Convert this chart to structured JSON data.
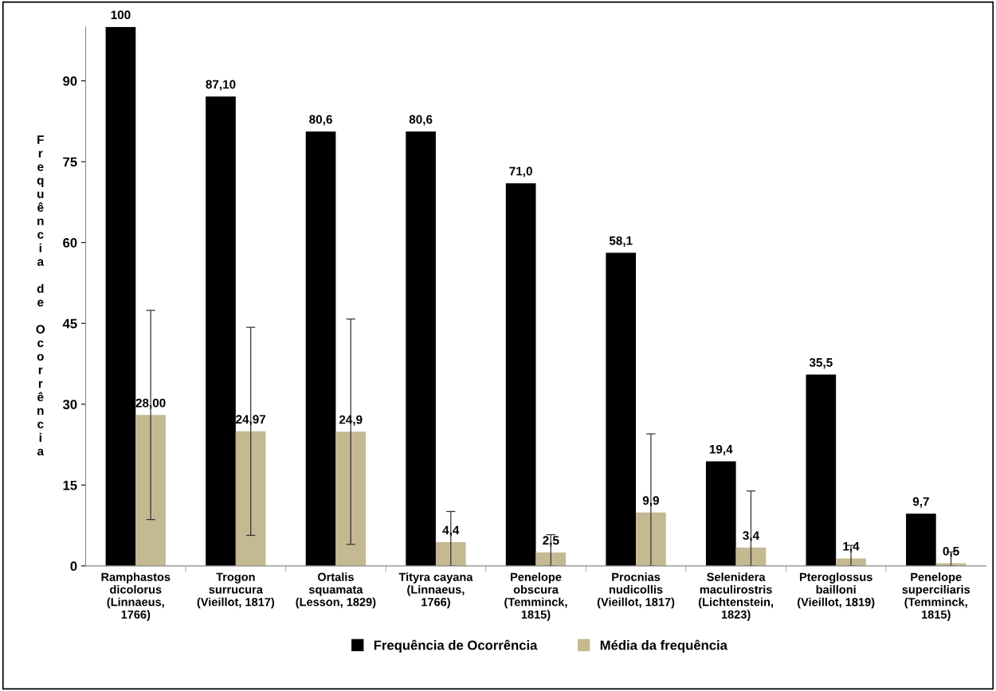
{
  "chart_data": {
    "type": "bar",
    "ylabel": "Frequência de Ocorrência",
    "categories": [
      "Ramphastos\ndicolorus\n(Linnaeus,\n1766)",
      "Trogon\nsurrucura\n(Vieillot, 1817)",
      "Ortalis\nsquamata\n(Lesson, 1829)",
      "Tityra cayana\n(Linnaeus,\n1766)",
      "Penelope\nobscura\n(Temminck,\n1815)",
      "Procnias\nnudicollis\n(Vieillot, 1817)",
      "Selenidera\nmaculirostris\n(Lichtenstein,\n1823)",
      "Pteroglossus\nbailloni\n(Vieillot, 1819)",
      "Penelope\nsuperciliaris\n(Temminck,\n1815)"
    ],
    "series": [
      {
        "name": "Frequência de Ocorrência",
        "color": "#000000",
        "values": [
          100,
          87.1,
          80.6,
          80.6,
          71.0,
          58.1,
          19.4,
          35.5,
          9.7
        ],
        "value_labels": [
          "100",
          "87,10",
          "80,6",
          "80,6",
          "71,0",
          "58,1",
          "19,4",
          "35,5",
          "9,7"
        ]
      },
      {
        "name": "Média da frequência",
        "color": "#c4b991",
        "values": [
          28.0,
          24.97,
          24.9,
          4.4,
          2.5,
          9.9,
          3.4,
          1.4,
          0.5
        ],
        "value_labels": [
          "28,00",
          "24,97",
          "24,9",
          "4,4",
          "2,5",
          "9,9",
          "3,4",
          "1,4",
          "0,5"
        ],
        "errors": [
          19.4,
          19.3,
          20.9,
          [
            0,
            10.1
          ],
          [
            0,
            5.8
          ],
          [
            0,
            24.5
          ],
          [
            0,
            13.9
          ],
          [
            0,
            3.8
          ],
          [
            0,
            2.6
          ]
        ]
      }
    ],
    "ylim": [
      0,
      100
    ],
    "yticks": [
      0,
      15,
      30,
      45,
      60,
      75,
      90
    ],
    "grid": false,
    "legend": "bottom"
  }
}
